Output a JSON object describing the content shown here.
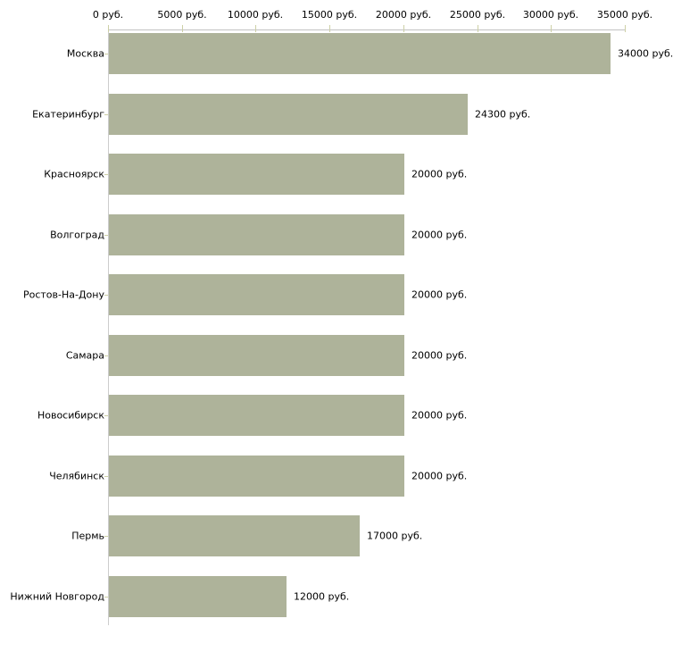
{
  "chart_data": {
    "type": "bar",
    "orientation": "horizontal",
    "title": "",
    "xlabel": "",
    "ylabel": "",
    "grid": false,
    "legend": false,
    "categories": [
      "Москва",
      "Екатеринбург",
      "Красноярск",
      "Волгоград",
      "Ростов-На-Дону",
      "Самара",
      "Новосибирск",
      "Челябинск",
      "Пермь",
      "Нижний Новгород"
    ],
    "values": [
      34000,
      24300,
      20000,
      20000,
      20000,
      20000,
      20000,
      20000,
      17000,
      12000
    ],
    "value_labels": [
      "34000 руб.",
      "24300 руб.",
      "20000 руб.",
      "20000 руб.",
      "20000 руб.",
      "20000 руб.",
      "20000 руб.",
      "20000 руб.",
      "17000 руб.",
      "12000 руб."
    ],
    "x_axis": {
      "position": "top",
      "xlim": [
        0,
        35000
      ],
      "tick_values": [
        0,
        5000,
        10000,
        15000,
        20000,
        25000,
        30000,
        35000
      ],
      "tick_labels": [
        "0 руб.",
        "5000 руб.",
        "10000 руб.",
        "15000 руб.",
        "20000 руб.",
        "25000 руб.",
        "30000 руб.",
        "35000 руб."
      ]
    },
    "colors": {
      "bar_fill": "#aeb39a",
      "axis_line": "#c2c2c2",
      "tick_mark": "#cdd0a6",
      "text": "#000000",
      "background": "#ffffff"
    }
  }
}
